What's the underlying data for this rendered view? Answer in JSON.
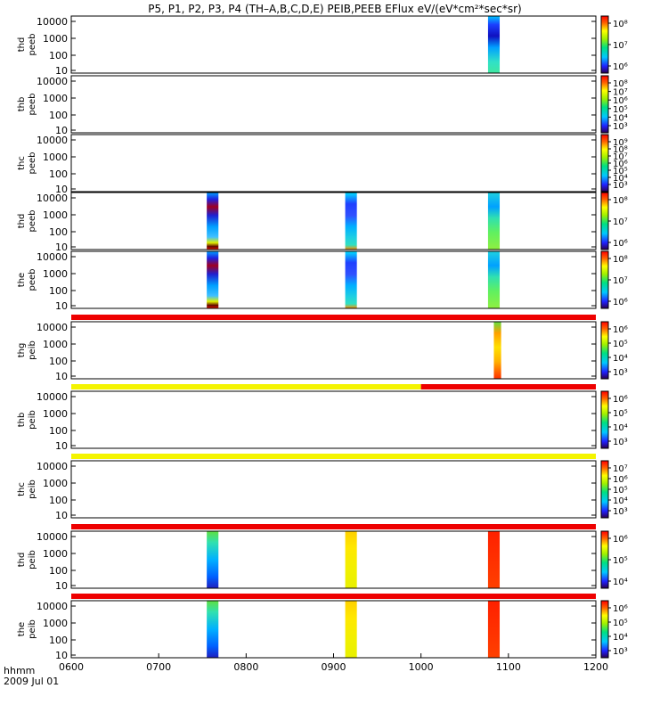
{
  "title": "P5, P1, P2, P3, P4 (TH–A,B,C,D,E) PEIB,PEEB EFlux eV/(eV*cm²*sec*sr)",
  "x_axis": {
    "label_line1": "hhmm",
    "label_line2": "2009 Jul 01",
    "ticks": [
      "0600",
      "0700",
      "0800",
      "0900",
      "1000",
      "1100",
      "1200"
    ]
  },
  "chart_data": {
    "type": "heatmap",
    "x_range": [
      "0600",
      "1200"
    ],
    "panels": [
      {
        "label": [
          "thd",
          "peeb"
        ],
        "ylabels": [
          "10000",
          "1000",
          "100",
          "10"
        ],
        "colorbar": [
          "10⁸",
          "10⁷",
          "10⁶"
        ],
        "blocks": [
          {
            "t0": "1046",
            "t1": "1054",
            "style": "eesa-deep"
          }
        ]
      },
      {
        "label": [
          "thb",
          "peeb"
        ],
        "ylabels": [
          "10000",
          "1000",
          "100",
          "10"
        ],
        "colorbar": [
          "10⁸",
          "10⁷",
          "10⁶",
          "10⁵",
          "10⁴",
          "10³"
        ],
        "blocks": []
      },
      {
        "label": [
          "thc",
          "peeb"
        ],
        "ylabels": [
          "10000",
          "1000",
          "100",
          "10"
        ],
        "colorbar": [
          "10⁹",
          "10⁸",
          "10⁷",
          "10⁶",
          "10⁵",
          "10⁴",
          "10³"
        ],
        "blocks": []
      },
      {
        "label": [
          "thd",
          "peeb"
        ],
        "ylabels": [
          "10000",
          "1000",
          "100",
          "10"
        ],
        "colorbar": [
          "10⁸",
          "10⁷",
          "10⁶"
        ],
        "blocks": [
          {
            "t0": "0733",
            "t1": "0741",
            "style": "eesa-warm"
          },
          {
            "t0": "0908",
            "t1": "0916",
            "style": "eesa-mid"
          },
          {
            "t0": "1046",
            "t1": "1054",
            "style": "eesa-green"
          }
        ]
      },
      {
        "label": [
          "the",
          "peeb"
        ],
        "ylabels": [
          "10000",
          "1000",
          "100",
          "10"
        ],
        "colorbar": [
          "10⁸",
          "10⁷",
          "10⁶"
        ],
        "blocks": [
          {
            "t0": "0733",
            "t1": "0741",
            "style": "eesa-warm"
          },
          {
            "t0": "0908",
            "t1": "0916",
            "style": "eesa-mid"
          },
          {
            "t0": "1046",
            "t1": "1054",
            "style": "eesa-green"
          }
        ]
      },
      {
        "label": [
          "thg",
          "peib"
        ],
        "ylabels": [
          "10000",
          "1000",
          "100",
          "10"
        ],
        "colorbar": [
          "10⁶",
          "10⁵",
          "10⁴",
          "10³"
        ],
        "blocks": [
          {
            "t0": "1050",
            "t1": "1055",
            "style": "iesa-warm"
          }
        ]
      },
      {
        "label": [
          "thb",
          "peib"
        ],
        "ylabels": [
          "10000",
          "1000",
          "100",
          "10"
        ],
        "colorbar": [
          "10⁶",
          "10⁵",
          "10⁴",
          "10³"
        ],
        "blocks": []
      },
      {
        "label": [
          "thc",
          "peib"
        ],
        "ylabels": [
          "10000",
          "1000",
          "100",
          "10"
        ],
        "colorbar": [
          "10⁷",
          "10⁶",
          "10⁵",
          "10⁴",
          "10³"
        ],
        "blocks": []
      },
      {
        "label": [
          "thd",
          "peib"
        ],
        "ylabels": [
          "10000",
          "1000",
          "100",
          "10"
        ],
        "colorbar": [
          "10⁶",
          "10⁵",
          "10⁴"
        ],
        "blocks": [
          {
            "t0": "0733",
            "t1": "0741",
            "style": "iesa-cool"
          },
          {
            "t0": "0908",
            "t1": "0916",
            "style": "iesa-yellow"
          },
          {
            "t0": "1046",
            "t1": "1054",
            "style": "iesa-red"
          }
        ]
      },
      {
        "label": [
          "the",
          "peib"
        ],
        "ylabels": [
          "10000",
          "1000",
          "100",
          "10"
        ],
        "colorbar": [
          "10⁶",
          "10⁵",
          "10⁴",
          "10³"
        ],
        "blocks": [
          {
            "t0": "0733",
            "t1": "0741",
            "style": "iesa-cool"
          },
          {
            "t0": "0908",
            "t1": "0916",
            "style": "iesa-yellow"
          },
          {
            "t0": "1046",
            "t1": "1054",
            "style": "iesa-red"
          }
        ]
      }
    ],
    "status_bars": [
      {
        "after_panel": 5,
        "segments": [
          {
            "t0": "0600",
            "t1": "1200",
            "color": "#ee0000"
          }
        ]
      },
      {
        "after_panel": 6,
        "segments": [
          {
            "t0": "0600",
            "t1": "1000",
            "color": "#f4f400"
          },
          {
            "t0": "1000",
            "t1": "1200",
            "color": "#ee0000"
          }
        ]
      },
      {
        "after_panel": 7,
        "segments": [
          {
            "t0": "0600",
            "t1": "1200",
            "color": "#f4f400"
          }
        ]
      },
      {
        "after_panel": 8,
        "segments": [
          {
            "t0": "0600",
            "t1": "1200",
            "color": "#ee0000"
          }
        ]
      },
      {
        "after_panel": 9,
        "segments": [
          {
            "t0": "0600",
            "t1": "1200",
            "color": "#ee0000"
          }
        ]
      }
    ]
  }
}
